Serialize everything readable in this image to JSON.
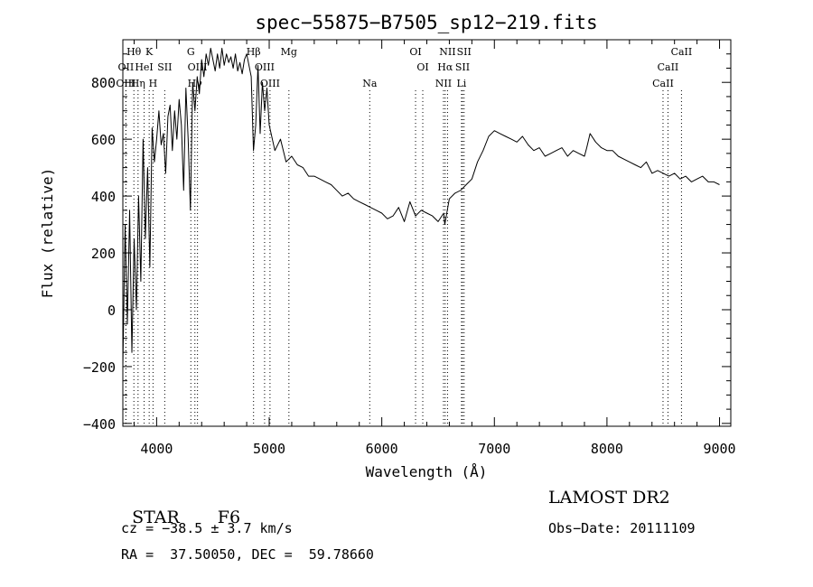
{
  "chart_data": {
    "type": "line",
    "title": "spec−55875−B7505_sp12−219.fits",
    "xlabel": "Wavelength (Å)",
    "ylabel": "Flux (relative)",
    "xlim": [
      3700,
      9100
    ],
    "ylim": [
      -410,
      950
    ],
    "xticks": [
      4000,
      5000,
      6000,
      7000,
      8000,
      9000
    ],
    "yticks": [
      -400,
      -200,
      0,
      200,
      400,
      600,
      800
    ],
    "series": [
      {
        "x": [
          3700,
          3720,
          3740,
          3760,
          3780,
          3800,
          3820,
          3840,
          3860,
          3880,
          3900,
          3920,
          3940,
          3960,
          3980,
          4000,
          4020,
          4040,
          4060,
          4080,
          4100,
          4120,
          4140,
          4160,
          4180,
          4200,
          4220,
          4240,
          4260,
          4280,
          4300,
          4320,
          4340,
          4360,
          4380,
          4400,
          4420,
          4440,
          4460,
          4480,
          4500,
          4520,
          4540,
          4560,
          4580,
          4600,
          4620,
          4640,
          4660,
          4680,
          4700,
          4720,
          4740,
          4760,
          4780,
          4800,
          4820,
          4840,
          4860,
          4880,
          4900,
          4920,
          4940,
          4960,
          4980,
          5000,
          5050,
          5100,
          5150,
          5200,
          5250,
          5300,
          5350,
          5400,
          5450,
          5500,
          5550,
          5600,
          5650,
          5700,
          5750,
          5800,
          5850,
          5900,
          5950,
          6000,
          6050,
          6100,
          6150,
          6200,
          6250,
          6300,
          6350,
          6400,
          6450,
          6500,
          6550,
          6560,
          6600,
          6650,
          6700,
          6750,
          6800,
          6850,
          6900,
          6950,
          7000,
          7050,
          7100,
          7150,
          7200,
          7250,
          7300,
          7350,
          7400,
          7450,
          7500,
          7550,
          7600,
          7650,
          7700,
          7750,
          7800,
          7820,
          7850,
          7900,
          7950,
          8000,
          8050,
          8100,
          8150,
          8200,
          8250,
          8300,
          8350,
          8400,
          8450,
          8500,
          8550,
          8600,
          8650,
          8700,
          8750,
          8800,
          8850,
          8900,
          8950,
          9000
        ],
        "y": [
          -200,
          300,
          -50,
          350,
          -150,
          250,
          0,
          400,
          100,
          600,
          250,
          500,
          150,
          640,
          520,
          600,
          700,
          580,
          620,
          480,
          680,
          720,
          560,
          700,
          600,
          740,
          650,
          420,
          780,
          600,
          350,
          800,
          700,
          820,
          760,
          880,
          820,
          900,
          860,
          920,
          880,
          840,
          900,
          850,
          920,
          860,
          900,
          870,
          890,
          850,
          900,
          840,
          870,
          830,
          880,
          900,
          860,
          820,
          560,
          650,
          860,
          620,
          800,
          700,
          780,
          650,
          560,
          600,
          520,
          540,
          510,
          500,
          470,
          470,
          460,
          450,
          440,
          420,
          400,
          410,
          390,
          380,
          370,
          360,
          350,
          340,
          320,
          330,
          360,
          310,
          380,
          330,
          350,
          340,
          330,
          310,
          340,
          300,
          390,
          410,
          420,
          440,
          460,
          520,
          560,
          610,
          630,
          620,
          610,
          600,
          590,
          610,
          580,
          560,
          570,
          540,
          550,
          560,
          570,
          540,
          560,
          550,
          540,
          570,
          620,
          590,
          570,
          560,
          560,
          540,
          530,
          520,
          510,
          500,
          520,
          480,
          490,
          480,
          470,
          480,
          460,
          470,
          450,
          460,
          470,
          450,
          450,
          440
        ]
      }
    ],
    "lines": [
      {
        "label": "Hθ",
        "x": 3798,
        "row": 1,
        "color": "#000000"
      },
      {
        "label": "K",
        "x": 3934,
        "row": 1,
        "color": "#000000"
      },
      {
        "label": "G",
        "x": 4304,
        "row": 1,
        "color": "#000000"
      },
      {
        "label": "Hβ",
        "x": 4861,
        "row": 1,
        "color": "#000000"
      },
      {
        "label": "Mg",
        "x": 5175,
        "row": 1,
        "color": "#000000"
      },
      {
        "label": "OI",
        "x": 6300,
        "row": 1,
        "color": "#000000"
      },
      {
        "label": "NII",
        "x": 6584,
        "row": 1,
        "color": "#000000"
      },
      {
        "label": "SII",
        "x": 6731,
        "row": 1,
        "color": "#000000"
      },
      {
        "label": "CaII",
        "x": 8662,
        "row": 1,
        "color": "#000000"
      },
      {
        "label": "OII",
        "x": 3727,
        "row": 2,
        "color": "#000000"
      },
      {
        "label": "HeI",
        "x": 3889,
        "row": 2,
        "color": "#000000"
      },
      {
        "label": "SII",
        "x": 4072,
        "row": 2,
        "color": "#000000"
      },
      {
        "label": "OIII",
        "x": 4363,
        "row": 2,
        "color": "#000000"
      },
      {
        "label": "OIII",
        "x": 4959,
        "row": 2,
        "color": "#000000"
      },
      {
        "label": "OI",
        "x": 6364,
        "row": 2,
        "color": "#000000"
      },
      {
        "label": "Hα",
        "x": 6563,
        "row": 2,
        "color": "#000000"
      },
      {
        "label": "SII",
        "x": 6717,
        "row": 2,
        "color": "#000000"
      },
      {
        "label": "CaII",
        "x": 8542,
        "row": 2,
        "color": "#000000"
      },
      {
        "label": "OIII",
        "x": 3727,
        "row": 3,
        "color": "#000000"
      },
      {
        "label": "Hη",
        "x": 3835,
        "row": 3,
        "color": "#000000"
      },
      {
        "label": "H",
        "x": 3968,
        "row": 3,
        "color": "#000000"
      },
      {
        "label": "Hγ",
        "x": 4340,
        "row": 3,
        "color": "#000000"
      },
      {
        "label": "OIII",
        "x": 5007,
        "row": 3,
        "color": "#000000"
      },
      {
        "label": "Na",
        "x": 5893,
        "row": 3,
        "color": "#000000"
      },
      {
        "label": "NII",
        "x": 6548,
        "row": 3,
        "color": "#000000"
      },
      {
        "label": "Li",
        "x": 6708,
        "row": 3,
        "color": "#000000"
      },
      {
        "label": "CaII",
        "x": 8498,
        "row": 3,
        "color": "#000000"
      }
    ]
  },
  "info": {
    "class_label": "STAR",
    "subclass": "F6",
    "survey": "LAMOST DR2",
    "cz": "cz = −38.5 ± 3.7 km/s",
    "obs_date": "Obs−Date: 20111109",
    "coords": "RA =  37.50050, DEC =  59.78660"
  }
}
